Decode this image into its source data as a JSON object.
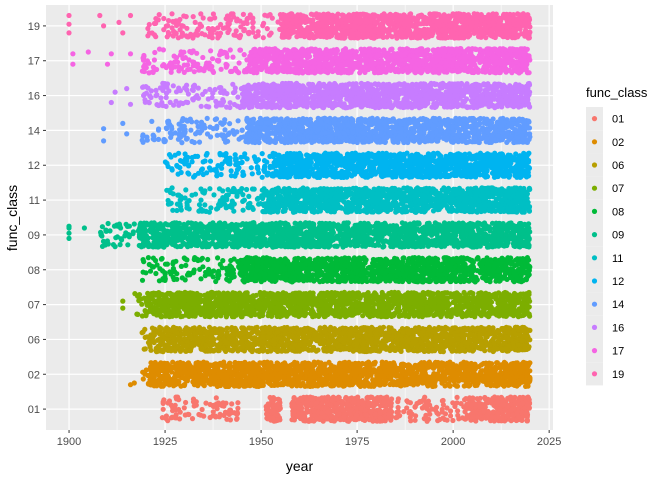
{
  "chart_data": {
    "type": "scatter",
    "subtype": "jittered-strip",
    "xlabel": "year",
    "ylabel": "func_class",
    "xlim": [
      1894,
      2026
    ],
    "x_ticks": [
      1900,
      1925,
      1950,
      1975,
      2000,
      2025
    ],
    "x_tick_labels": [
      "1900",
      "1925",
      "1950",
      "1975",
      "2000",
      "2025"
    ],
    "categories": [
      "01",
      "02",
      "06",
      "07",
      "08",
      "09",
      "11",
      "12",
      "14",
      "16",
      "17",
      "19"
    ],
    "jitter": 0.35,
    "grid": true,
    "legend": {
      "title": "func_class",
      "placement": "right"
    },
    "colors": {
      "01": "#F8766D",
      "02": "#DE8C00",
      "06": "#B79F00",
      "07": "#7CAE00",
      "08": "#00BA38",
      "09": "#00C08B",
      "11": "#00BFC4",
      "12": "#00B4F0",
      "14": "#619CFF",
      "16": "#C77CFF",
      "17": "#F564E3",
      "19": "#FF64B0"
    },
    "series": [
      {
        "name": "01",
        "dense": [
          [
            1951,
            1955
          ],
          [
            1958,
            1984
          ],
          [
            2003,
            2020
          ]
        ],
        "sparse": [
          [
            1924,
            1944
          ],
          [
            1985,
            2003
          ]
        ],
        "points": []
      },
      {
        "name": "02",
        "dense": [
          [
            1921,
            2020
          ]
        ],
        "sparse": [
          [
            1919,
            1921
          ]
        ],
        "points": [
          [
            1916,
            -0.3
          ],
          [
            1917,
            -0.25
          ]
        ]
      },
      {
        "name": "06",
        "dense": [
          [
            1921,
            2020
          ]
        ],
        "sparse": [
          [
            1919,
            1921
          ]
        ],
        "points": []
      },
      {
        "name": "07",
        "dense": [
          [
            1920,
            2020
          ]
        ],
        "sparse": [
          [
            1917,
            1920
          ]
        ],
        "points": [
          [
            1914,
            -0.1
          ],
          [
            1914,
            0.1
          ]
        ]
      },
      {
        "name": "08",
        "dense": [
          [
            1944,
            2020
          ]
        ],
        "sparse": [
          [
            1919,
            1944
          ]
        ],
        "points": []
      },
      {
        "name": "09",
        "dense": [
          [
            1918,
            2020
          ]
        ],
        "sparse": [
          [
            1908,
            1918
          ]
        ],
        "points": [
          [
            1900,
            -0.1
          ],
          [
            1900,
            0.05
          ],
          [
            1900,
            0.2
          ],
          [
            1900,
            0.25
          ],
          [
            1904,
            0.2
          ]
        ]
      },
      {
        "name": "11",
        "dense": [
          [
            1950,
            2020
          ]
        ],
        "sparse": [
          [
            1925,
            1950
          ]
        ],
        "points": []
      },
      {
        "name": "12",
        "dense": [
          [
            1953,
            2020
          ]
        ],
        "sparse": [
          [
            1925,
            1953
          ]
        ],
        "points": []
      },
      {
        "name": "14",
        "dense": [
          [
            1946,
            2020
          ]
        ],
        "sparse": [
          [
            1919,
            1946
          ]
        ],
        "points": [
          [
            1909,
            0.05
          ],
          [
            1909,
            -0.3
          ],
          [
            1914,
            0.2
          ],
          [
            1915,
            -0.1
          ]
        ]
      },
      {
        "name": "16",
        "dense": [
          [
            1945,
            2020
          ]
        ],
        "sparse": [
          [
            1919,
            1945
          ]
        ],
        "points": [
          [
            1911,
            -0.2
          ],
          [
            1912,
            0.1
          ],
          [
            1915,
            0.2
          ],
          [
            1916,
            -0.25
          ]
        ]
      },
      {
        "name": "17",
        "dense": [
          [
            1947,
            2020
          ]
        ],
        "sparse": [
          [
            1919,
            1947
          ]
        ],
        "points": [
          [
            1901,
            0.2
          ],
          [
            1901,
            -0.1
          ],
          [
            1905,
            0.25
          ],
          [
            1910,
            -0.1
          ],
          [
            1911,
            0.2
          ],
          [
            1916,
            0.2
          ]
        ]
      },
      {
        "name": "19",
        "dense": [
          [
            1955,
            2020
          ]
        ],
        "sparse": [
          [
            1920,
            1955
          ]
        ],
        "points": [
          [
            1900,
            0.3
          ],
          [
            1900,
            0.05
          ],
          [
            1900,
            -0.2
          ],
          [
            1908,
            0.3
          ],
          [
            1909,
            0
          ],
          [
            1913,
            0.1
          ],
          [
            1914,
            -0.2
          ],
          [
            1916,
            0.3
          ]
        ]
      }
    ]
  }
}
